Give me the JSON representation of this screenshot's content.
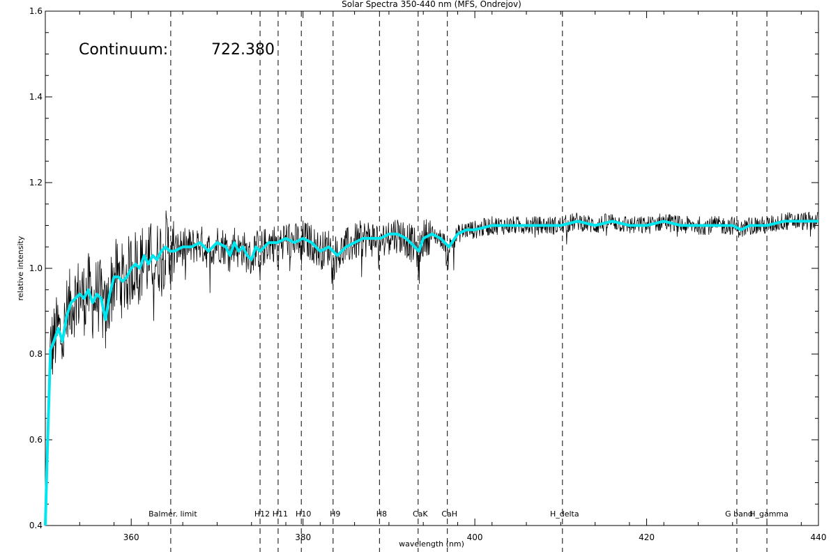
{
  "chart_data": {
    "type": "line",
    "title": "Solar Spectra 350-440 nm (MFS, Ondrejov)",
    "xlabel": "wavelength (nm)",
    "ylabel": "relative intensity",
    "xlim": [
      350,
      440
    ],
    "ylim": [
      0.4,
      1.6
    ],
    "x_ticks": [
      360,
      380,
      400,
      420,
      440
    ],
    "y_ticks": [
      0.4,
      0.6,
      0.8,
      1.0,
      1.2,
      1.4,
      1.6
    ],
    "y_tick_labels": [
      "0.4",
      "0.6",
      "0.8",
      "1.0",
      "1.2",
      "1.4",
      "1.6"
    ],
    "grid": false,
    "annotation": {
      "label": "Continuum:",
      "value": "722.380"
    },
    "reference_lines": [
      {
        "name": "Balmer. limit",
        "x": 364.6
      },
      {
        "name": "H12",
        "x": 375.0
      },
      {
        "name": "H11",
        "x": 377.1
      },
      {
        "name": "H10",
        "x": 379.8
      },
      {
        "name": "H9",
        "x": 383.5
      },
      {
        "name": "H8",
        "x": 388.9
      },
      {
        "name": "CaK",
        "x": 393.4
      },
      {
        "name": "CaH",
        "x": 396.8
      },
      {
        "name": "H_delta",
        "x": 410.2
      },
      {
        "name": "G band",
        "x": 430.5
      },
      {
        "name": "H_gamma",
        "x": 434.0
      }
    ],
    "series": [
      {
        "color": "#00e5ee",
        "x": [
          350.0,
          350.2,
          350.4,
          350.6,
          351.0,
          351.5,
          352.0,
          352.5,
          353.0,
          353.5,
          354.0,
          354.5,
          355.0,
          355.5,
          356.0,
          356.5,
          357.0,
          357.5,
          358.0,
          358.5,
          359.0,
          359.5,
          360.0,
          360.5,
          361.0,
          361.5,
          362.0,
          362.5,
          363.0,
          363.5,
          364.0,
          364.5,
          365.0,
          366.0,
          367.0,
          368.0,
          369.0,
          370.0,
          371.0,
          371.5,
          372.0,
          372.5,
          373.0,
          373.5,
          374.0,
          374.5,
          375.0,
          376.0,
          377.0,
          378.0,
          379.0,
          380.0,
          381.0,
          382.0,
          383.0,
          384.0,
          385.0,
          386.0,
          387.0,
          388.0,
          389.0,
          390.0,
          391.0,
          392.0,
          393.0,
          393.5,
          394.0,
          395.0,
          396.0,
          397.0,
          398.0,
          399.0,
          400.0,
          402.0,
          404.0,
          406.0,
          408.0,
          410.0,
          412.0,
          414.0,
          416.0,
          418.0,
          420.0,
          422.0,
          424.0,
          426.0,
          428.0,
          430.0,
          431.0,
          432.0,
          434.0,
          436.0,
          438.0,
          440.0
        ],
        "y": [
          0.4,
          0.55,
          0.68,
          0.81,
          0.83,
          0.86,
          0.83,
          0.89,
          0.92,
          0.93,
          0.94,
          0.93,
          0.95,
          0.92,
          0.94,
          0.93,
          0.88,
          0.94,
          0.98,
          0.98,
          0.97,
          0.98,
          1.0,
          1.01,
          1.0,
          1.03,
          1.01,
          1.03,
          1.02,
          1.04,
          1.05,
          1.04,
          1.04,
          1.05,
          1.05,
          1.06,
          1.04,
          1.06,
          1.05,
          1.03,
          1.06,
          1.04,
          1.05,
          1.03,
          1.02,
          1.05,
          1.04,
          1.06,
          1.06,
          1.07,
          1.06,
          1.07,
          1.06,
          1.04,
          1.05,
          1.03,
          1.05,
          1.06,
          1.07,
          1.07,
          1.07,
          1.08,
          1.08,
          1.07,
          1.05,
          1.04,
          1.07,
          1.08,
          1.07,
          1.05,
          1.08,
          1.09,
          1.09,
          1.1,
          1.1,
          1.1,
          1.1,
          1.1,
          1.11,
          1.1,
          1.11,
          1.1,
          1.1,
          1.11,
          1.1,
          1.1,
          1.1,
          1.1,
          1.09,
          1.1,
          1.1,
          1.11,
          1.11,
          1.11
        ]
      }
    ]
  }
}
